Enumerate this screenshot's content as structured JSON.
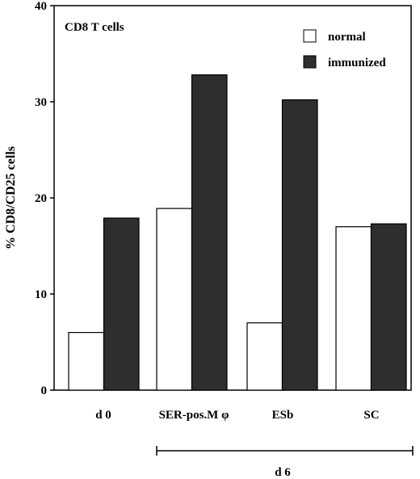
{
  "chart_data": {
    "type": "bar",
    "title": "CD8 T cells",
    "ylabel": "% CD8/CD25 cells",
    "xlabel": "",
    "ylim": [
      0,
      40
    ],
    "yticks": [
      "0",
      "10",
      "20",
      "30",
      "40"
    ],
    "ytick_values": [
      0,
      10,
      20,
      30,
      40
    ],
    "categories": [
      "d 0",
      "SER-pos.M φ",
      "ESb",
      "SC"
    ],
    "series": [
      {
        "name": "normal",
        "values": [
          6.0,
          18.9,
          7.0,
          17.0
        ],
        "color": "#ffffff"
      },
      {
        "name": "immunized",
        "values": [
          17.9,
          32.8,
          30.2,
          17.3
        ],
        "color": "#2e2e2e"
      }
    ],
    "group_label": "d 6",
    "group_span": [
      "SER-pos.M φ",
      "SC"
    ],
    "legend_position": "top-right",
    "grid": false
  }
}
